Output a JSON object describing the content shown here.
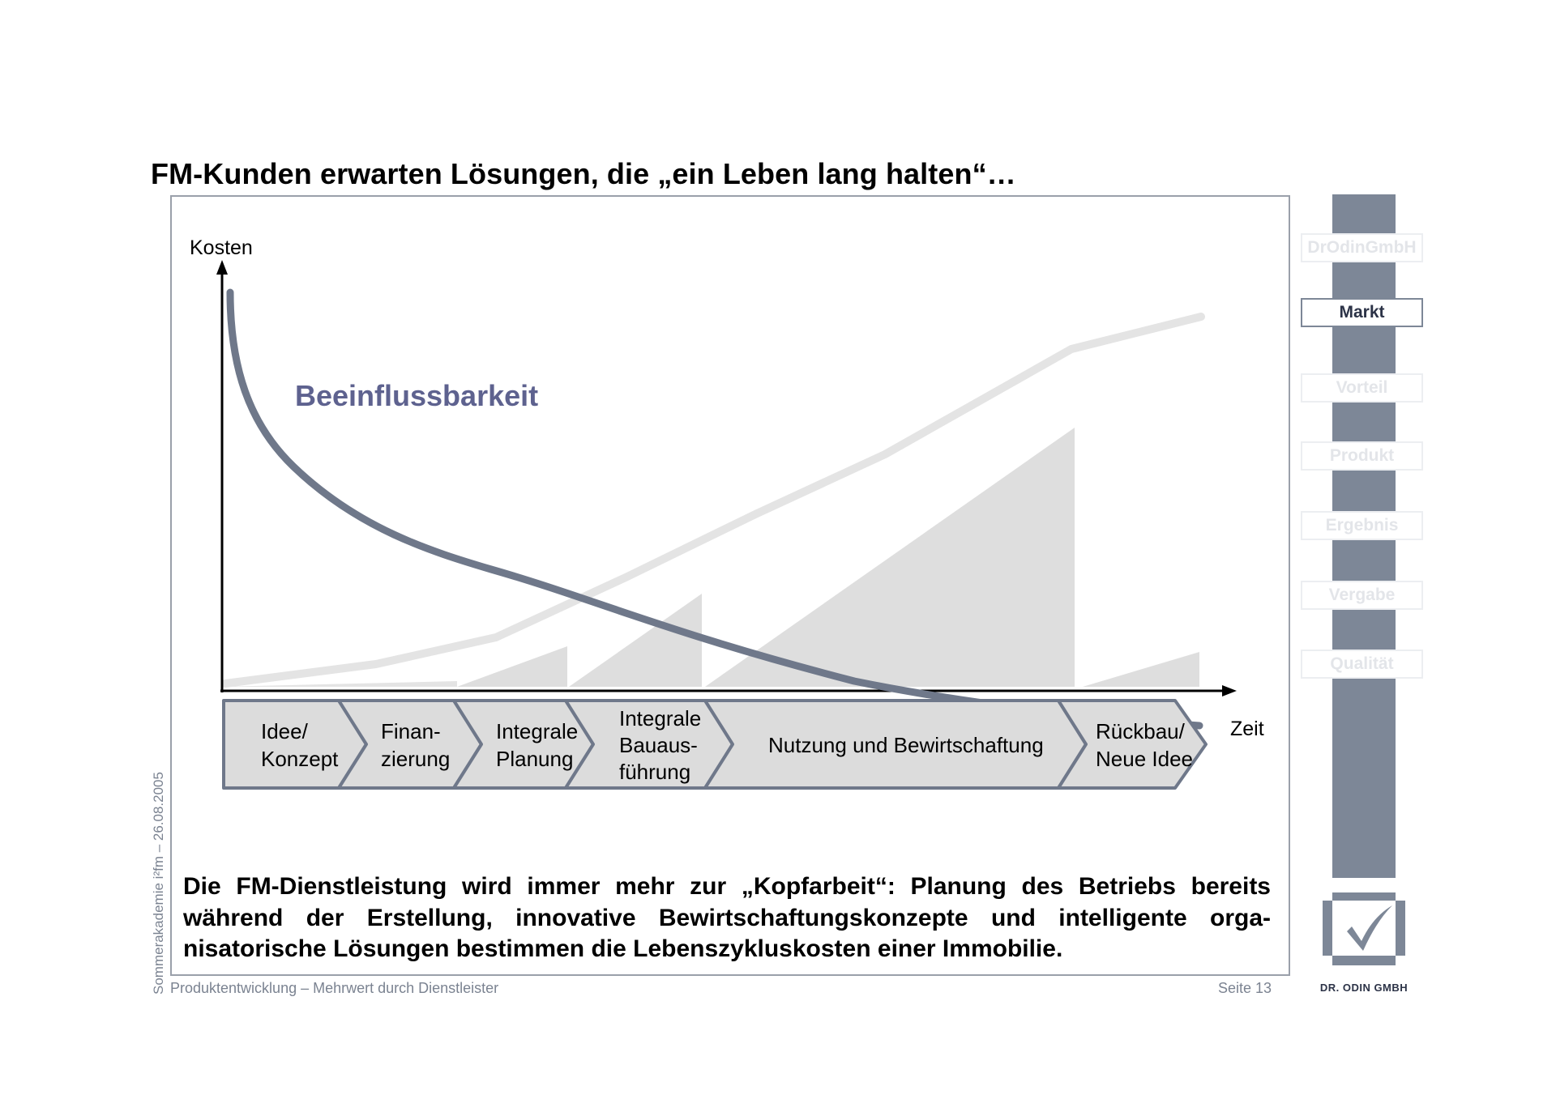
{
  "title": "FM-Kunden erwarten Lösungen, die „ein Leben lang halten“…",
  "chart": {
    "y_axis_label": "Kosten",
    "x_axis_label": "Zeit",
    "curve_label": "Beeinflussbarkeit",
    "phases": [
      {
        "lines": [
          "Idee/",
          "Konzept"
        ]
      },
      {
        "lines": [
          "Finan-",
          "zierung"
        ]
      },
      {
        "lines": [
          "Integrale",
          "Planung"
        ]
      },
      {
        "lines": [
          "Integrale",
          "Bauaus-",
          "führung"
        ]
      },
      {
        "lines": [
          "Nutzung und Bewirtschaftung"
        ]
      },
      {
        "lines": [
          "Rückbau/",
          "Neue Idee"
        ]
      }
    ],
    "colors": {
      "influence_curve": "#6f788a",
      "influence_label": "#5e628f",
      "cost_curve": "#e4e4e4",
      "cost_areas": "#dedede",
      "phase_fill": "#dcdcdc",
      "phase_border": "#6f788a"
    }
  },
  "body_text": {
    "line1": "Die FM-Dienstleistung wird immer mehr zur „Kopfarbeit“: Planung des Betriebs bereits",
    "line2": "während der Erstellung, innovative Bewirtschaftungskonzepte und intelligente orga-",
    "line3": "nisatorische Lösungen bestimmen die Lebenszykluskosten einer Immobilie."
  },
  "side_text": "Sommerakademie i²fm – 26.08.2005",
  "footer": {
    "left": "Produktentwicklung – Mehrwert durch Dienstleister",
    "right": "Seite 13"
  },
  "nav": {
    "items": [
      {
        "label": "DrOdinGmbH",
        "active": false
      },
      {
        "label": "Markt",
        "active": true
      },
      {
        "label": "Vorteil",
        "active": false
      },
      {
        "label": "Produkt",
        "active": false
      },
      {
        "label": "Ergebnis",
        "active": false
      },
      {
        "label": "Vergabe",
        "active": false
      },
      {
        "label": "Qualität",
        "active": false
      }
    ]
  },
  "logo": {
    "name": "checkmark-logo-icon",
    "text": "DR. ODIN GMBH",
    "color": "#7d8797"
  }
}
